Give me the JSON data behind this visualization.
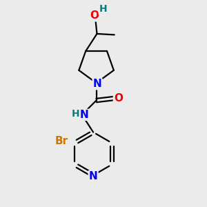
{
  "bg_color": "#ebebeb",
  "bond_color": "#000000",
  "bond_width": 1.6,
  "atom_colors": {
    "N": "#0000ee",
    "O": "#ee0000",
    "Br": "#cc7700",
    "H_teal": "#008080",
    "C": "#000000"
  },
  "font_size_atoms": 11,
  "font_size_h": 10
}
